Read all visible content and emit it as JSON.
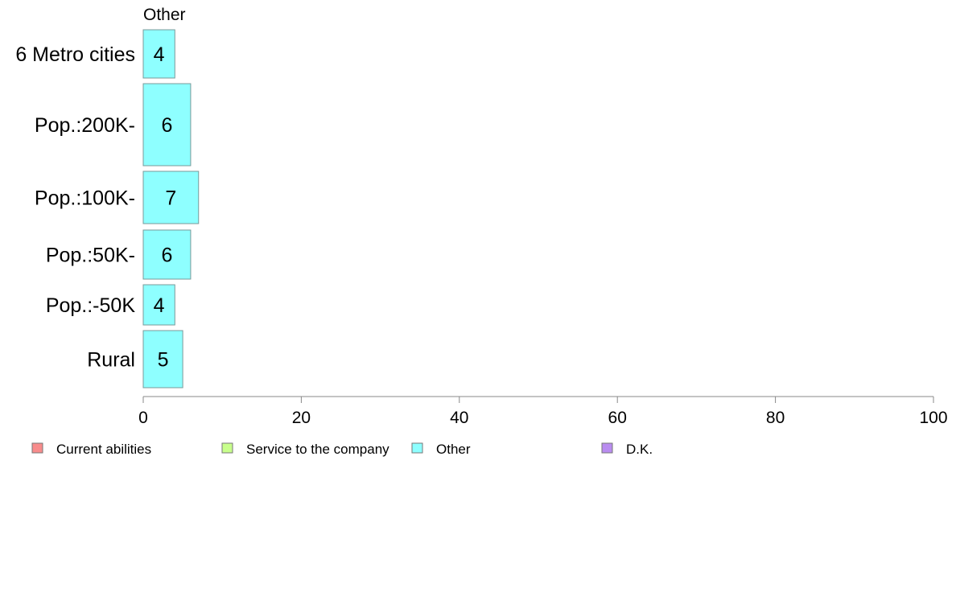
{
  "chart_data": {
    "type": "bar",
    "orientation": "horizontal",
    "panel_title": "Other",
    "categories": [
      "6 Metro cities",
      "Pop.:200K-",
      "Pop.:100K-",
      "Pop.:50K-",
      "Pop.:-50K",
      "Rural"
    ],
    "values": [
      4,
      6,
      7,
      6,
      4,
      5
    ],
    "xlim": [
      0,
      100
    ],
    "xticks": [
      0,
      20,
      40,
      60,
      80,
      100
    ],
    "grid": false,
    "bar_color": "#8effff",
    "bar_stroke": "#7a9a9a",
    "legend": {
      "placement": "bottom",
      "entries": [
        {
          "label": "Current abilities",
          "color": "#f88c8c"
        },
        {
          "label": "Service to the company",
          "color": "#c8ff8c"
        },
        {
          "label": "Other",
          "color": "#8effff"
        },
        {
          "label": "D.K.",
          "color": "#b98cf0"
        }
      ]
    }
  }
}
